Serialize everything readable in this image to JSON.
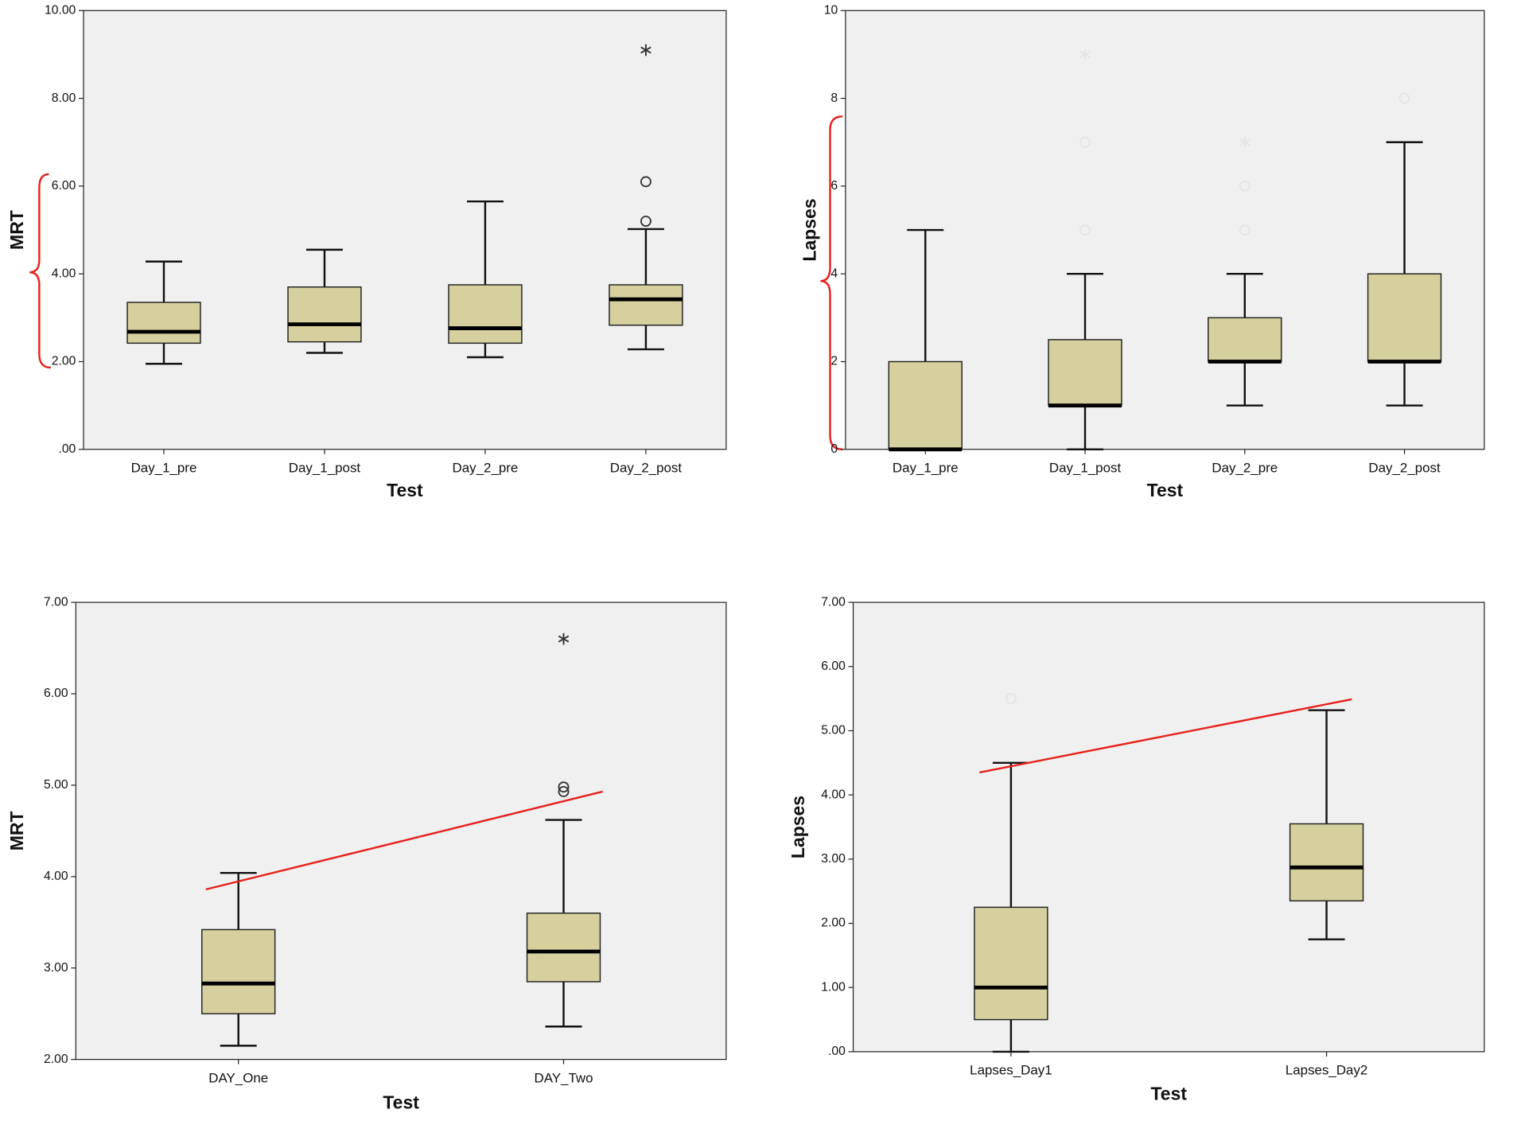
{
  "chart_data": [
    {
      "type": "box",
      "y_label": "MRT",
      "x_label": "Test",
      "categories": [
        "Day_1_pre",
        "Day_1_post",
        "Day_2_pre",
        "Day_2_post"
      ],
      "ylim": [
        0,
        10
      ],
      "yticks": [
        {
          "value": 0,
          "label": ".00"
        },
        {
          "value": 2,
          "label": "2.00"
        },
        {
          "value": 4,
          "label": "4.00"
        },
        {
          "value": 6,
          "label": "6.00"
        },
        {
          "value": 8,
          "label": "8.00"
        },
        {
          "value": 10,
          "label": "10.00"
        }
      ],
      "color": "#d5d09e",
      "outlier_color": "#333333",
      "boxes": [
        {
          "min": 1.95,
          "q1": 2.42,
          "median": 2.68,
          "q3": 3.35,
          "max": 4.28,
          "outliers": []
        },
        {
          "min": 2.2,
          "q1": 2.45,
          "median": 2.85,
          "q3": 3.7,
          "max": 4.55,
          "outliers": []
        },
        {
          "min": 2.1,
          "q1": 2.42,
          "median": 2.76,
          "q3": 3.75,
          "max": 5.65,
          "outliers": []
        },
        {
          "min": 2.28,
          "q1": 2.83,
          "median": 3.42,
          "q3": 3.75,
          "max": 5.02,
          "outliers": [
            {
              "value": 5.2,
              "marker": "o"
            },
            {
              "value": 6.1,
              "marker": "o"
            },
            {
              "value": 9.1,
              "marker": "*"
            }
          ]
        }
      ]
    },
    {
      "type": "box",
      "y_label": "Lapses",
      "x_label": "Test",
      "categories": [
        "Day_1_pre",
        "Day_1_post",
        "Day_2_pre",
        "Day_2_post"
      ],
      "ylim": [
        0,
        10
      ],
      "yticks": [
        0,
        2,
        4,
        6,
        8,
        10
      ],
      "color": "#d5d09e",
      "outlier_color": "#e4e4e4",
      "boxes": [
        {
          "min": 0,
          "q1": 0,
          "median": 0,
          "q3": 2,
          "max": 5,
          "outliers": []
        },
        {
          "min": 0,
          "q1": 1,
          "median": 1,
          "q3": 2.5,
          "max": 4,
          "outliers": [
            {
              "value": 5,
              "marker": "o"
            },
            {
              "value": 7,
              "marker": "o"
            },
            {
              "value": 9,
              "marker": "*"
            }
          ]
        },
        {
          "min": 1,
          "q1": 2,
          "median": 2,
          "q3": 3,
          "max": 4,
          "outliers": [
            {
              "value": 5,
              "marker": "o"
            },
            {
              "value": 6,
              "marker": "o"
            },
            {
              "value": 7,
              "marker": "*"
            }
          ]
        },
        {
          "min": 1,
          "q1": 2,
          "median": 2,
          "q3": 4,
          "max": 7,
          "outliers": [
            {
              "value": 8,
              "marker": "o"
            }
          ]
        }
      ]
    },
    {
      "type": "box",
      "y_label": "MRT",
      "x_label": "Test",
      "categories": [
        "DAY_One",
        "DAY_Two"
      ],
      "ylim": [
        2,
        7
      ],
      "yticks": [
        {
          "value": 2,
          "label": "2.00"
        },
        {
          "value": 3,
          "label": "3.00"
        },
        {
          "value": 4,
          "label": "4.00"
        },
        {
          "value": 5,
          "label": "5.00"
        },
        {
          "value": 6,
          "label": "6.00"
        },
        {
          "value": 7,
          "label": "7.00"
        }
      ],
      "color": "#d5d09e",
      "outlier_color": "#333333",
      "boxes": [
        {
          "min": 2.15,
          "q1": 2.5,
          "median": 2.83,
          "q3": 3.42,
          "max": 4.04,
          "outliers": []
        },
        {
          "min": 2.36,
          "q1": 2.85,
          "median": 3.18,
          "q3": 3.6,
          "max": 4.62,
          "outliers": [
            {
              "value": 4.93,
              "marker": "o"
            },
            {
              "value": 4.98,
              "marker": "o"
            },
            {
              "value": 6.6,
              "marker": "*"
            }
          ]
        }
      ],
      "trend_line": {
        "color": "#e8201c",
        "values": [
          3.86,
          4.93
        ]
      }
    },
    {
      "type": "box",
      "y_label": "Lapses",
      "x_label": "Test",
      "categories": [
        "Lapses_Day1",
        "Lapses_Day2"
      ],
      "ylim": [
        0,
        7
      ],
      "yticks": [
        {
          "value": 0,
          "label": ".00"
        },
        {
          "value": 1,
          "label": "1.00"
        },
        {
          "value": 2,
          "label": "2.00"
        },
        {
          "value": 3,
          "label": "3.00"
        },
        {
          "value": 4,
          "label": "4.00"
        },
        {
          "value": 5,
          "label": "5.00"
        },
        {
          "value": 6,
          "label": "6.00"
        },
        {
          "value": 7,
          "label": "7.00"
        }
      ],
      "color": "#d5d09e",
      "outlier_color": "#e4e4e4",
      "boxes": [
        {
          "min": 0,
          "q1": 0.5,
          "median": 1.0,
          "q3": 2.25,
          "max": 4.5,
          "outliers": [
            {
              "value": 5.5,
              "marker": "o"
            }
          ]
        },
        {
          "min": 1.75,
          "q1": 2.35,
          "median": 2.87,
          "q3": 3.55,
          "max": 5.32,
          "outliers": []
        }
      ],
      "trend_line": {
        "color": "#e8201c",
        "values": [
          4.35,
          5.49
        ]
      }
    }
  ]
}
